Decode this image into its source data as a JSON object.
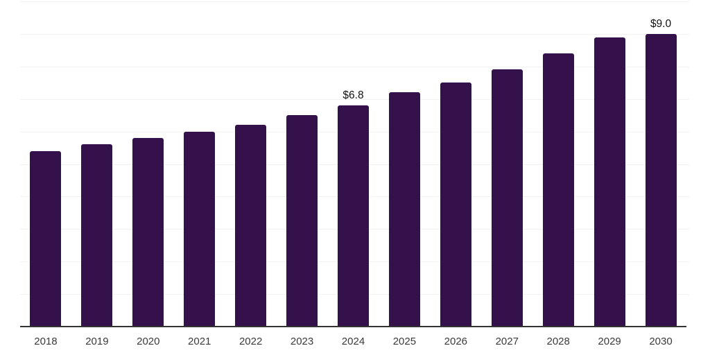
{
  "chart_data": {
    "type": "bar",
    "title": "",
    "xlabel": "",
    "ylabel": "",
    "categories": [
      "2018",
      "2019",
      "2020",
      "2021",
      "2022",
      "2023",
      "2024",
      "2025",
      "2026",
      "2027",
      "2028",
      "2029",
      "2030"
    ],
    "values": [
      5.4,
      5.6,
      5.8,
      6.0,
      6.2,
      6.5,
      6.8,
      7.2,
      7.5,
      7.9,
      8.4,
      8.9,
      9.0
    ],
    "data_labels": {
      "2024": "$6.8",
      "2030": "$9.0"
    },
    "ylim": [
      0,
      10
    ],
    "gridline_step": 1,
    "grid": true,
    "legend": false,
    "colors": {
      "bar": "#34114a",
      "gridline": "#f2f2f2",
      "axis": "#333333",
      "tick_label": "#3a3a3a",
      "value_label": "#111111"
    }
  }
}
